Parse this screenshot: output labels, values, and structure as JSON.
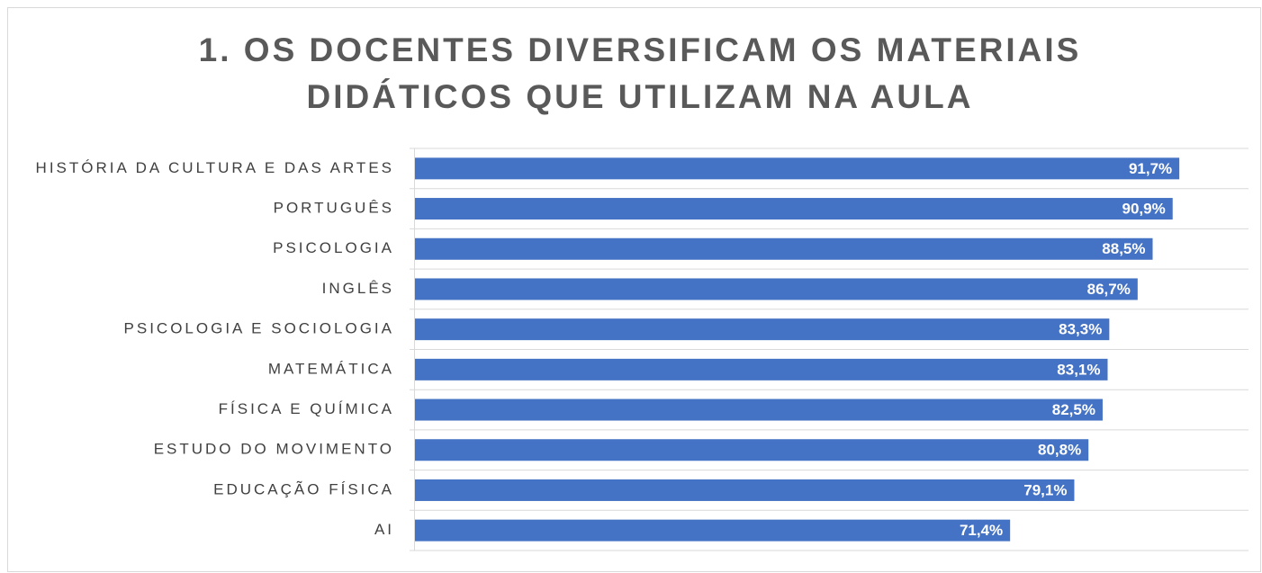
{
  "chart_data": {
    "type": "bar",
    "orientation": "horizontal",
    "title": "1. OS DOCENTES DIVERSIFICAM OS MATERIAIS DIDÁTICOS QUE UTILIZAM NA AULA",
    "categories": [
      "HISTÓRIA DA CULTURA E DAS ARTES",
      "PORTUGUÊS",
      "PSICOLOGIA",
      "INGLÊS",
      "PSICOLOGIA E SOCIOLOGIA",
      "MATEMÁTICA",
      "FÍSICA E QUÍMICA",
      "ESTUDO DO MOVIMENTO",
      "EDUCAÇÃO FÍSICA",
      "AI"
    ],
    "values": [
      91.7,
      90.9,
      88.5,
      86.7,
      83.3,
      83.1,
      82.5,
      80.8,
      79.1,
      71.4
    ],
    "value_labels": [
      "91,7%",
      "90,9%",
      "88,5%",
      "86,7%",
      "83,3%",
      "83,1%",
      "82,5%",
      "80,8%",
      "79,1%",
      "71,4%"
    ],
    "color": "#4472c4",
    "xlim": [
      0,
      100
    ],
    "grid": true
  }
}
